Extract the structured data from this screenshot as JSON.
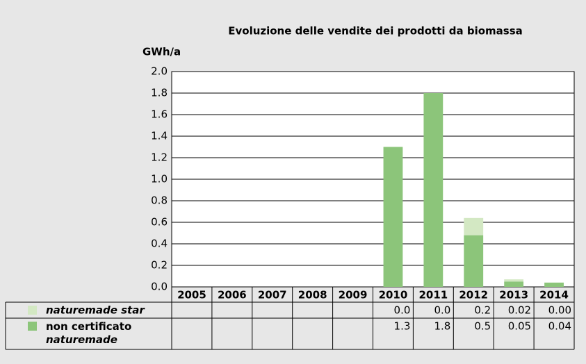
{
  "chart_data": {
    "type": "stacked-bar",
    "title": "Evoluzione delle vendite dei prodotti da biomassa",
    "y_label": "GWh/a",
    "categories": [
      "2005",
      "2006",
      "2007",
      "2008",
      "2009",
      "2010",
      "2011",
      "2012",
      "2013",
      "2014"
    ],
    "series": [
      {
        "name": "naturemade star",
        "color": "#d3e8c3",
        "values": [
          null,
          null,
          null,
          null,
          null,
          0,
          0,
          0.16,
          0.02,
          0
        ],
        "value_labels": [
          null,
          null,
          null,
          null,
          null,
          "0.0",
          "0.0",
          "0.2",
          "0.02",
          "0.00"
        ]
      },
      {
        "name": "non certificato naturemade",
        "color": "#8cc57a",
        "values": [
          null,
          null,
          null,
          null,
          null,
          1.3,
          1.8,
          0.48,
          0.05,
          0.04
        ],
        "value_labels": [
          null,
          null,
          null,
          null,
          null,
          "1.3",
          "1.8",
          "0.5",
          "0.05",
          "0.04"
        ]
      }
    ],
    "ylim": [
      0,
      2
    ],
    "yticks": [
      {
        "value": 0,
        "label": "0.0"
      },
      0.2,
      0.4,
      0.6,
      0.8,
      {
        "value": 1,
        "label": "1.0"
      },
      1.2,
      1.4,
      1.6,
      1.8,
      {
        "value": 2,
        "label": "2.0"
      }
    ],
    "grid": true
  }
}
